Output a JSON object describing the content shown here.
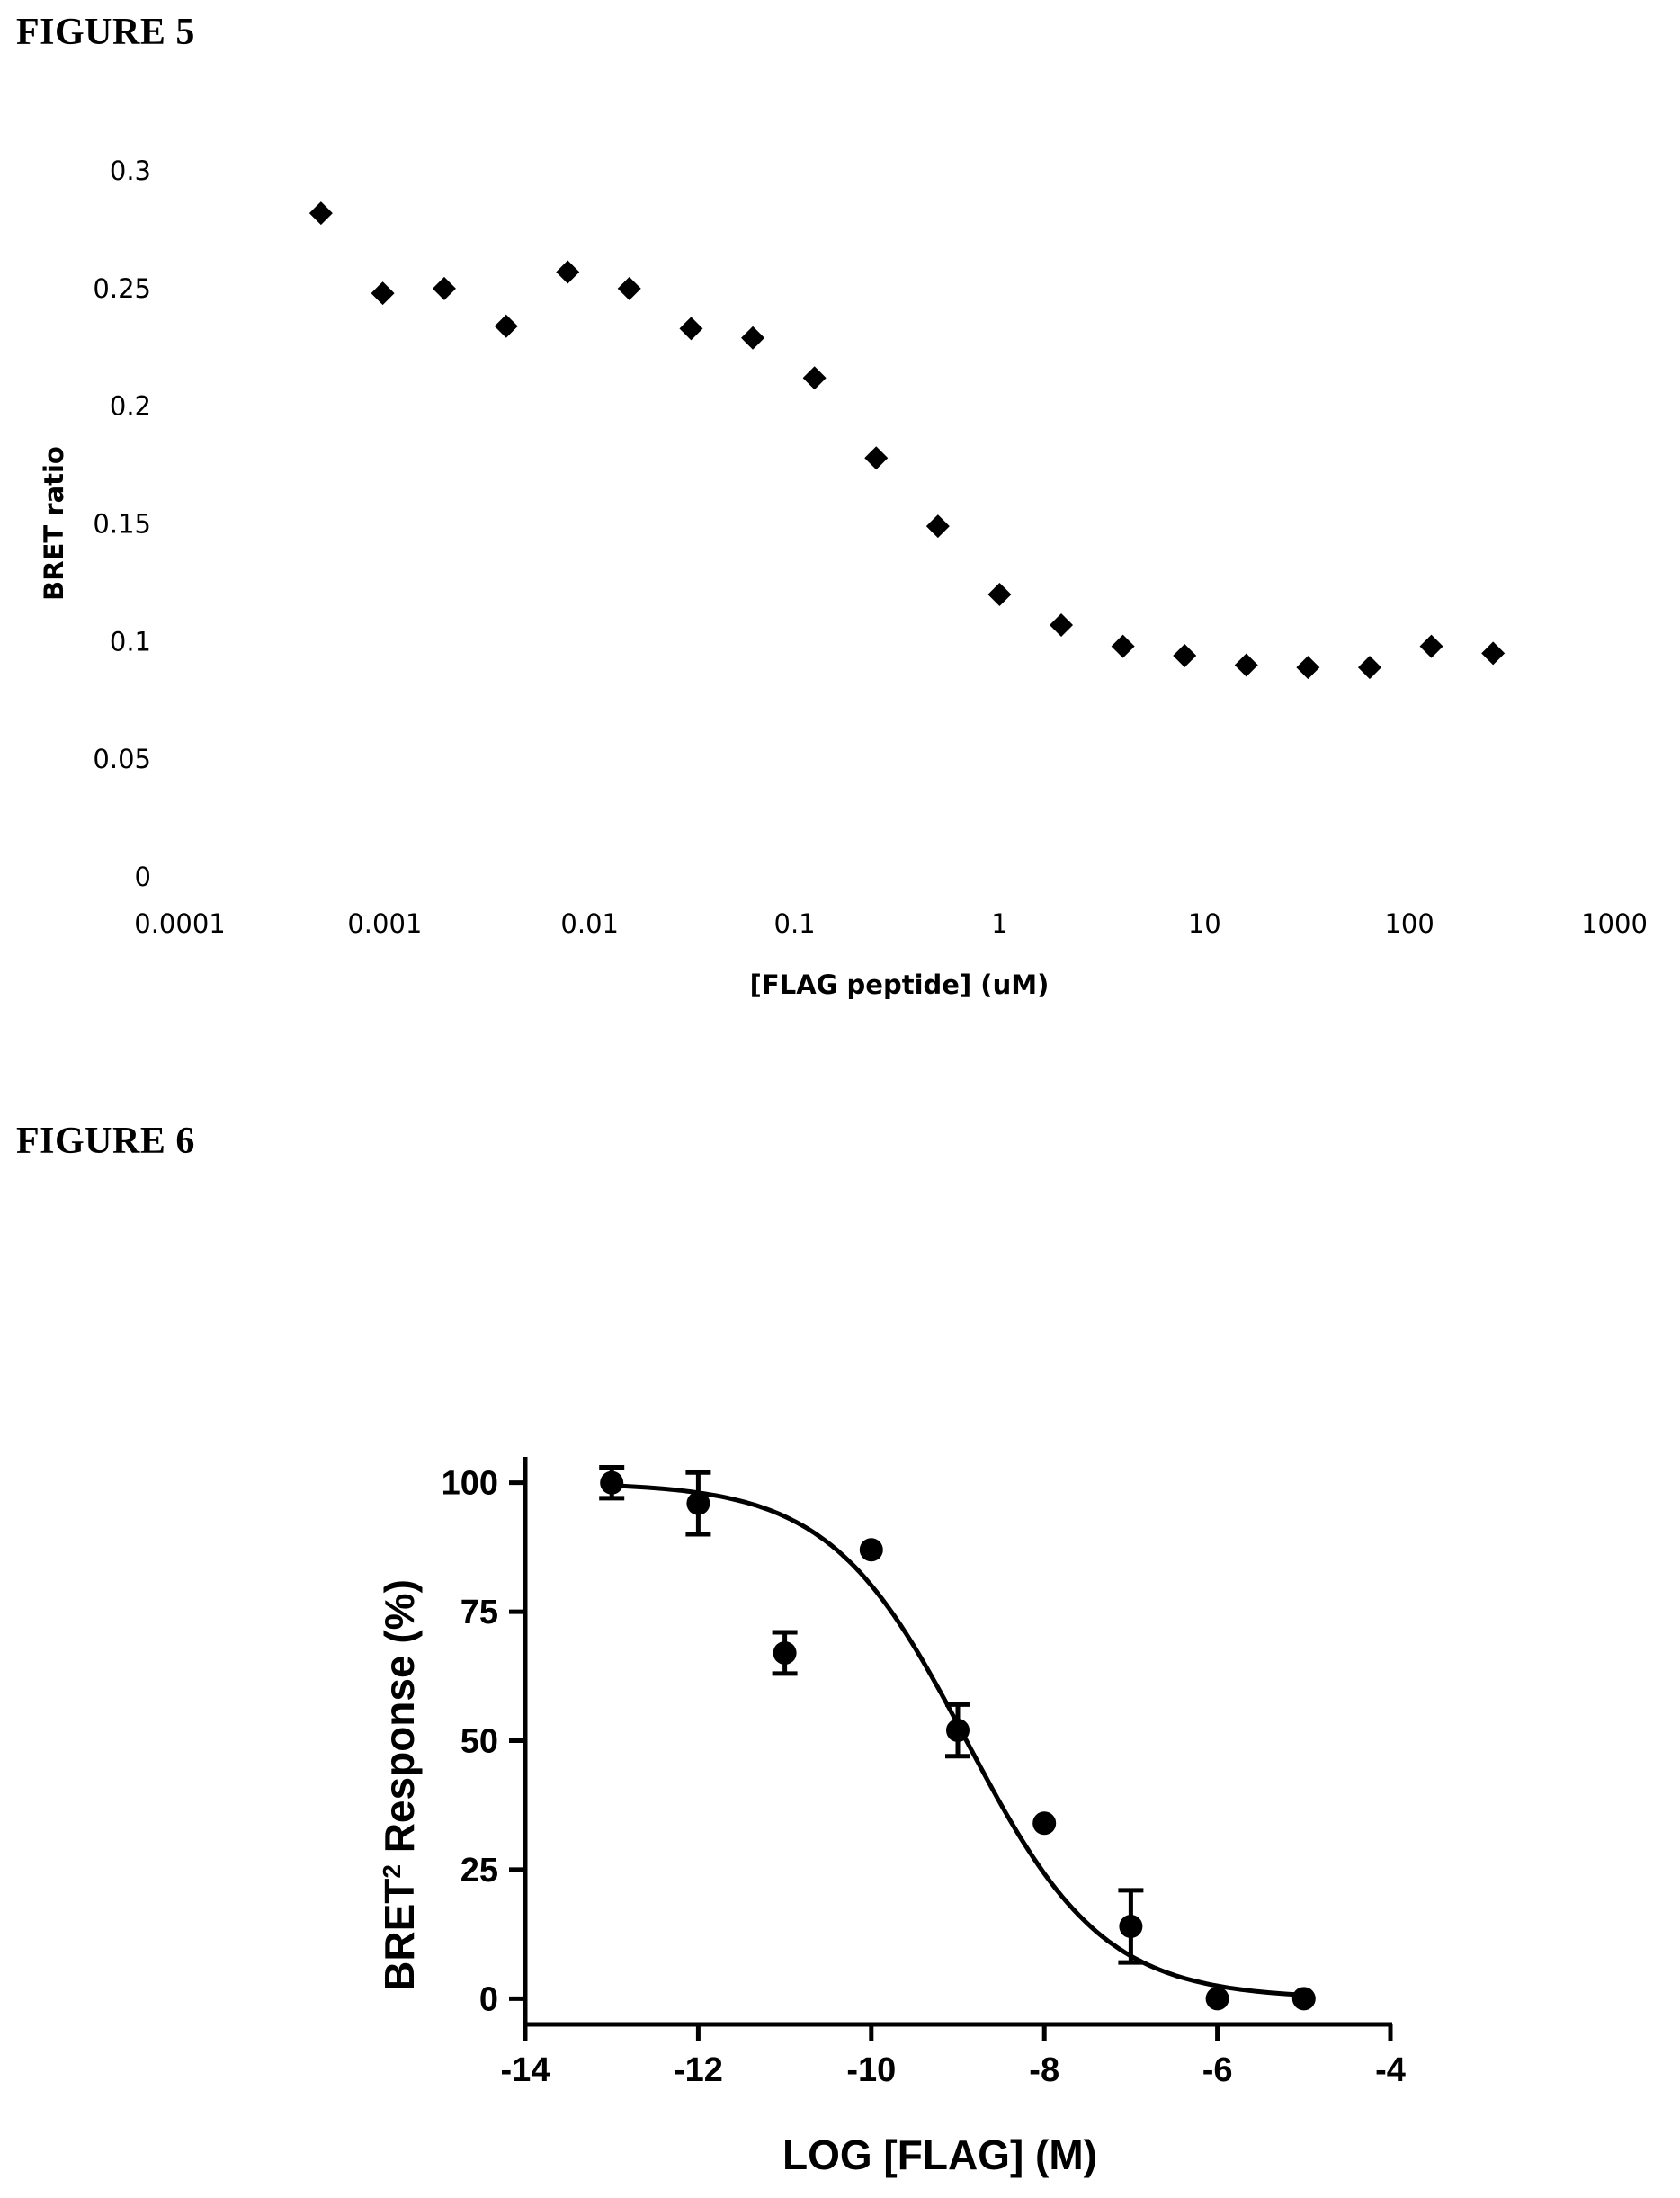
{
  "figures": [
    {
      "title": "FIGURE 5"
    },
    {
      "title": "FIGURE 6"
    }
  ],
  "chart_data": [
    {
      "type": "scatter",
      "title": "",
      "xlabel": "[FLAG peptide] (uM)",
      "ylabel": "BRET ratio",
      "x_scale": "log",
      "xlim": [
        0.0001,
        1000
      ],
      "ylim": [
        0,
        0.3
      ],
      "x_ticks": [
        "0.0001",
        "0.001",
        "0.01",
        "0.1",
        "1",
        "10",
        "100",
        "1000"
      ],
      "x_tick_values": [
        0.0001,
        0.001,
        0.01,
        0.1,
        1,
        10,
        100,
        1000
      ],
      "y_ticks": [
        "0",
        "0.05",
        "0.1",
        "0.15",
        "0.2",
        "0.25",
        "0.3"
      ],
      "y_tick_values": [
        0,
        0.05,
        0.1,
        0.15,
        0.2,
        0.25,
        0.3
      ],
      "axis_lines": false,
      "grid": false,
      "marker": "diamond",
      "series": [
        {
          "x": [
            0.000488,
            0.000977,
            0.00195,
            0.00391,
            0.00781,
            0.0156,
            0.03125,
            0.0625,
            0.125,
            0.25,
            0.5,
            1,
            2,
            4,
            8,
            16,
            32,
            64,
            128,
            256
          ],
          "y": [
            0.282,
            0.248,
            0.25,
            0.234,
            0.257,
            0.25,
            0.233,
            0.229,
            0.212,
            0.178,
            0.149,
            0.12,
            0.107,
            0.098,
            0.094,
            0.09,
            0.089,
            0.089,
            0.098,
            0.095
          ]
        }
      ]
    },
    {
      "type": "scatter",
      "title": "",
      "xlabel": "LOG [FLAG] (M)",
      "ylabel_main": "BRET",
      "ylabel_sup": "2",
      "ylabel_rest": " Response (%)",
      "xlim": [
        -14,
        -4
      ],
      "ylim": [
        -5,
        105
      ],
      "x_ticks": [
        "-14",
        "-12",
        "-10",
        "-8",
        "-6",
        "-4"
      ],
      "x_tick_values": [
        -14,
        -12,
        -10,
        -8,
        -6,
        -4
      ],
      "y_ticks": [
        "0",
        "25",
        "50",
        "75",
        "100"
      ],
      "y_tick_values": [
        0,
        25,
        50,
        75,
        100
      ],
      "grid": false,
      "marker": "circle",
      "series": [
        {
          "x": [
            -13,
            -12,
            -11,
            -10,
            -9,
            -8,
            -7,
            -6,
            -5
          ],
          "y": [
            100,
            96,
            67,
            87,
            52,
            34,
            14,
            0,
            0
          ],
          "error": [
            3,
            6,
            4,
            0,
            5,
            0,
            7,
            0,
            0
          ]
        }
      ],
      "fit_curve": {
        "model": "sigmoidal dose-response",
        "top": 100,
        "bottom": 0,
        "log_ic50": -8.9,
        "hill_slope": -0.55,
        "x_range": [
          -13,
          -5
        ]
      }
    }
  ]
}
